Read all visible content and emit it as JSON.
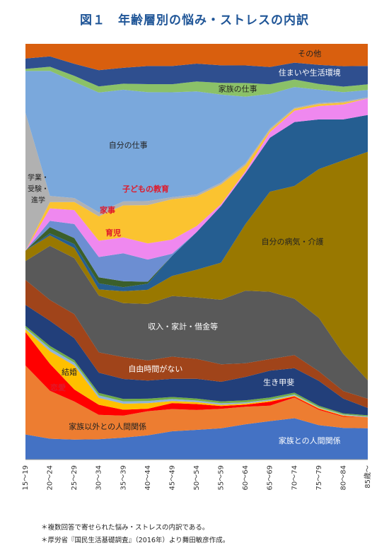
{
  "chart_data": {
    "type": "area",
    "stacked": true,
    "normalized": true,
    "title": "図１　年齢層別の悩み・ストレスの内訳",
    "ylim": [
      0,
      100
    ],
    "categories": [
      "15～19",
      "20～24",
      "25～29",
      "30～34",
      "35～39",
      "40～44",
      "45～49",
      "50～54",
      "55～59",
      "60～64",
      "65～69",
      "70～74",
      "75～79",
      "80～84",
      "85歳～"
    ],
    "series": [
      {
        "name": "家族との人間関係",
        "color": "#4472c4",
        "label_color": "white",
        "values": [
          6,
          5,
          5,
          5,
          5.5,
          6,
          7,
          7.5,
          8,
          9,
          10,
          11,
          9,
          8.5,
          8.5
        ]
      },
      {
        "name": "家族以外との人間関係",
        "color": "#ed7d31",
        "label_color": "dark",
        "values": [
          16.5,
          11.5,
          9.5,
          6,
          5.5,
          6,
          5.5,
          5,
          5,
          4.5,
          4,
          5.5,
          4,
          3,
          3
        ]
      },
      {
        "name": "恋愛",
        "color": "#ff0000",
        "label_color": "white",
        "values": [
          8,
          6.5,
          3,
          2.5,
          1.5,
          0.6,
          1.5,
          1.5,
          0.7,
          0.5,
          1,
          0.3,
          0.3,
          0.2,
          0
        ]
      },
      {
        "name": "結婚",
        "color": "#ffc000",
        "label_color": "dark",
        "values": [
          0.7,
          3,
          6,
          1.7,
          1.5,
          1.4,
          0.5,
          0.5,
          0.3,
          0.3,
          0.3,
          0.2,
          0.2,
          0.2,
          0
        ]
      },
      {
        "name": "",
        "color": "#8fb3d9",
        "label_color": "dark",
        "values": [
          0.3,
          0.7,
          0.7,
          0.6,
          0.6,
          0.5,
          0.5,
          0.4,
          0.4,
          0.3,
          0.3,
          0.3,
          0.2,
          0.2,
          0.2
        ]
      },
      {
        "name": "",
        "color": "#70ad47",
        "label_color": "dark",
        "values": [
          0.5,
          0.6,
          0.6,
          0.6,
          0.6,
          0.6,
          0.5,
          0.5,
          0.5,
          0.5,
          0.5,
          0.5,
          0.4,
          0.3,
          0.3
        ]
      },
      {
        "name": "生き甲斐",
        "color": "#223f7a",
        "label_color": "white",
        "values": [
          5,
          6,
          5.5,
          5,
          5,
          4.5,
          4.5,
          5,
          5,
          6,
          7,
          6.5,
          6.5,
          4,
          2
        ]
      },
      {
        "name": "自由時間がない",
        "color": "#a0441a",
        "label_color": "white",
        "values": [
          6,
          5,
          6,
          5,
          5.5,
          5,
          5.5,
          5,
          4.5,
          3.5,
          3,
          3.5,
          2.5,
          2,
          2.5
        ]
      },
      {
        "name": "収入・家計・借金等",
        "color": "#595959",
        "label_color": "white",
        "values": [
          4.5,
          13,
          14,
          14,
          13.5,
          14,
          15,
          15.5,
          16.5,
          18.5,
          17.5,
          15,
          14,
          10,
          5
        ]
      },
      {
        "name": "自分の病気・介護",
        "color": "#997800",
        "label_color": "dark",
        "values": [
          2.5,
          2.5,
          2.5,
          1.5,
          3,
          3.5,
          5,
          7,
          9.5,
          17,
          26,
          30,
          39,
          52,
          62
        ]
      },
      {
        "name": "",
        "color": "#255e91",
        "label_color": "white",
        "values": [
          0,
          0.5,
          1,
          1.5,
          1,
          1.5,
          5,
          9.5,
          14.5,
          13,
          14,
          17,
          13,
          11,
          10
        ]
      },
      {
        "name": "",
        "color": "#3b5f2b",
        "label_color": "white",
        "values": [
          0,
          1.5,
          1.5,
          1.5,
          1.5,
          0.5,
          0,
          0,
          0,
          0,
          0,
          0,
          0,
          0,
          0
        ]
      },
      {
        "name": "育児",
        "color": "#6c8ed2",
        "label_color": "dark",
        "values": [
          0,
          1.5,
          3.5,
          5,
          7,
          5.5,
          0.5,
          0,
          0,
          0,
          0,
          0,
          0,
          0,
          0
        ]
      },
      {
        "name": "家事",
        "color": "#ef88ef",
        "label_color": "dark",
        "values": [
          0,
          3,
          3.5,
          4,
          4,
          4,
          3.5,
          1.5,
          0.5,
          0.5,
          1.5,
          3,
          3.5,
          4,
          4.5
        ]
      },
      {
        "name": "子どもの教育",
        "color": "#fbc330",
        "label_color": "dark",
        "values": [
          0,
          1.5,
          2,
          6,
          8,
          9.5,
          10,
          7.5,
          5,
          1.5,
          0.5,
          0.5,
          0.5,
          0.5,
          0
        ]
      },
      {
        "name": "学業・受験・進学",
        "color": "#b1b1b1",
        "label_color": "dark",
        "values": [
          33,
          1.5,
          1,
          1,
          1,
          1,
          0.5,
          0.5,
          0.5,
          0.5,
          0.4,
          0.3,
          0.3,
          0.3,
          0.3
        ]
      },
      {
        "name": "自分の仕事",
        "color": "#7aa8dc",
        "label_color": "dark",
        "values": [
          10,
          30,
          29,
          29.5,
          28,
          27,
          26,
          26,
          22.5,
          17,
          9,
          5.5,
          3.5,
          2.5,
          2
        ]
      },
      {
        "name": "家族の仕事",
        "color": "#8bc168",
        "label_color": "dark",
        "values": [
          0.5,
          1,
          1.5,
          1.5,
          1.5,
          2,
          2,
          2.5,
          3,
          3.5,
          2.5,
          2,
          1.5,
          1.5,
          1.5
        ]
      },
      {
        "name": "住まいや生活環境",
        "color": "#2f4f8f",
        "label_color": "white",
        "values": [
          2.5,
          2.5,
          3,
          4,
          4,
          4.5,
          4.5,
          4.5,
          4.5,
          4.5,
          4.5,
          4.5,
          5,
          5.5,
          5
        ]
      },
      {
        "name": "その他",
        "color": "#d95f0e",
        "label_color": "dark",
        "values": [
          3.5,
          3,
          5,
          6.5,
          6,
          5.5,
          5.5,
          5,
          5.5,
          5.5,
          6,
          5,
          5.5,
          6,
          6
        ]
      }
    ],
    "annotations": [
      {
        "text": "学業・",
        "series": "学業・受験・進学"
      },
      {
        "text": "受験・",
        "series": "学業・受験・進学"
      },
      {
        "text": "進学",
        "series": "学業・受験・進学"
      },
      {
        "text": "恋愛",
        "series": "恋愛"
      },
      {
        "text": "結婚",
        "series": "結婚"
      },
      {
        "text": "家事",
        "series": "家事"
      },
      {
        "text": "育児",
        "series": "育児"
      },
      {
        "text": "子どもの教育",
        "series": "子どもの教育"
      }
    ]
  },
  "notes": [
    "＊複数回答で寄せられた悩み・ストレスの内訳である。",
    "＊厚労省『国民生活基礎調査』（2016年）より舞田敏彦作成。"
  ]
}
